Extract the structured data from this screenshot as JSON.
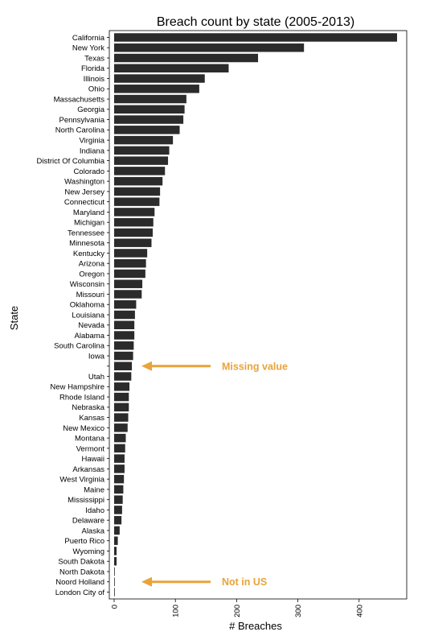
{
  "chart_data": {
    "type": "bar",
    "orientation": "horizontal",
    "title": "Breach count by state (2005-2013)",
    "xlabel": "# Breaches",
    "ylabel": "State",
    "xlim": [
      0,
      470
    ],
    "xticks": [
      "0",
      "100",
      "200",
      "300",
      "400"
    ],
    "xtick_values": [
      0,
      100,
      200,
      300,
      400
    ],
    "grid": false,
    "bar_color": "#2b2b2b",
    "categories": [
      "California",
      "New York",
      "Texas",
      "Florida",
      "Illinois",
      "Ohio",
      "Massachusetts",
      "Georgia",
      "Pennsylvania",
      "North Carolina",
      "Virginia",
      "Indiana",
      "District Of Columbia",
      "Colorado",
      "Washington",
      "New Jersey",
      "Connecticut",
      "Maryland",
      "Michigan",
      "Tennessee",
      "Minnesota",
      "Kentucky",
      "Arizona",
      "Oregon",
      "Wisconsin",
      "Missouri",
      "Oklahoma",
      "Louisiana",
      "Nevada",
      "Alabama",
      "South Carolina",
      "Iowa",
      "",
      "Utah",
      "New Hampshire",
      "Rhode Island",
      "Nebraska",
      "Kansas",
      "New Mexico",
      "Montana",
      "Vermont",
      "Hawaii",
      "Arkansas",
      "West Virginia",
      "Maine",
      "Mississippi",
      "Idaho",
      "Delaware",
      "Alaska",
      "Puerto Rico",
      "Wyoming",
      "South Dakota",
      "North Dakota",
      "Noord Holland",
      "London City of"
    ],
    "values": [
      462,
      310,
      235,
      187,
      148,
      139,
      118,
      115,
      113,
      107,
      96,
      90,
      88,
      83,
      79,
      75,
      74,
      66,
      64,
      63,
      61,
      54,
      52,
      51,
      46,
      45,
      36,
      34,
      33,
      33,
      32,
      31,
      29,
      28,
      25,
      24,
      24,
      23,
      22,
      19,
      18,
      17,
      17,
      16,
      15,
      14,
      13,
      12,
      9,
      6,
      4,
      4,
      1,
      1,
      1
    ],
    "annotations": [
      {
        "text": "Missing value",
        "target_index": 32,
        "color": "#e8a33a"
      },
      {
        "text": "Not in US",
        "target_index": 53,
        "color": "#e8a33a"
      }
    ]
  }
}
